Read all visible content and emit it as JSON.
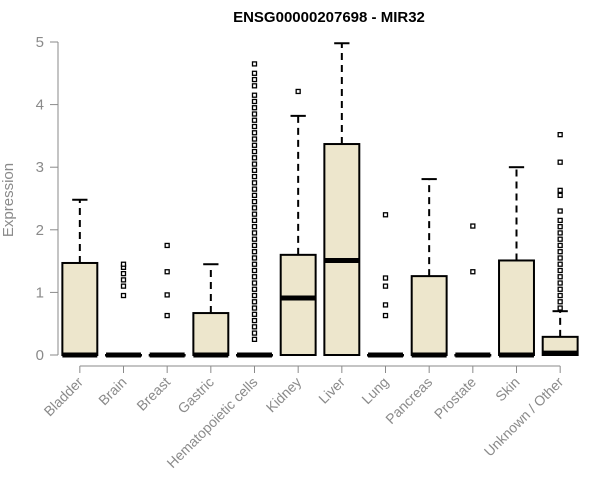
{
  "chart_data": {
    "type": "box",
    "title": "ENSG00000207698 - MIR32",
    "xlabel": "",
    "ylabel": "Expression",
    "ylim": [
      0,
      5
    ],
    "yticks": [
      "0",
      "1",
      "2",
      "3",
      "4",
      "5"
    ],
    "grid": false,
    "colors": {
      "box_fill": "#ede6cc",
      "stroke": "#000000",
      "tick_text": "#8a8a8a"
    },
    "categories": [
      "Bladder",
      "Brain",
      "Breast",
      "Gastric",
      "Hematopoietic cells",
      "Kidney",
      "Liver",
      "Lung",
      "Pancreas",
      "Prostate",
      "Skin",
      "Unknown / Other"
    ],
    "boxes": [
      {
        "q1": 0,
        "median": 0,
        "q3": 1.47,
        "whisker_low": 0,
        "whisker_high": 2.48,
        "outliers": []
      },
      {
        "q1": 0,
        "median": 0,
        "q3": 0,
        "whisker_low": 0,
        "whisker_high": 0,
        "outliers": [
          0.95,
          1.1,
          1.2,
          1.3,
          1.4,
          1.45
        ]
      },
      {
        "q1": 0,
        "median": 0,
        "q3": 0,
        "whisker_low": 0,
        "whisker_high": 0,
        "outliers": [
          0.63,
          0.96,
          1.33,
          1.75
        ]
      },
      {
        "q1": 0,
        "median": 0,
        "q3": 0.67,
        "whisker_low": 0,
        "whisker_high": 1.45,
        "outliers": []
      },
      {
        "q1": 0,
        "median": 0,
        "q3": 0,
        "whisker_low": 0,
        "whisker_high": 0,
        "outliers": [
          0.25,
          0.35,
          0.45,
          0.55,
          0.65,
          0.75,
          0.85,
          0.95,
          1.05,
          1.15,
          1.25,
          1.35,
          1.45,
          1.55,
          1.65,
          1.75,
          1.85,
          1.95,
          2.05,
          2.15,
          2.25,
          2.35,
          2.45,
          2.55,
          2.65,
          2.75,
          2.85,
          2.95,
          3.05,
          3.15,
          3.25,
          3.35,
          3.45,
          3.55,
          3.65,
          3.75,
          3.85,
          3.95,
          4.05,
          4.15,
          4.3,
          4.4,
          4.5,
          4.65
        ]
      },
      {
        "q1": 0,
        "median": 0.91,
        "q3": 1.6,
        "whisker_low": 0,
        "whisker_high": 3.82,
        "outliers": [
          4.21
        ]
      },
      {
        "q1": 0,
        "median": 1.51,
        "q3": 3.37,
        "whisker_low": 0,
        "whisker_high": 4.98,
        "outliers": []
      },
      {
        "q1": 0,
        "median": 0,
        "q3": 0,
        "whisker_low": 0,
        "whisker_high": 0,
        "outliers": [
          0.63,
          0.8,
          1.1,
          1.23,
          2.24
        ]
      },
      {
        "q1": 0,
        "median": 0,
        "q3": 1.26,
        "whisker_low": 0,
        "whisker_high": 2.81,
        "outliers": []
      },
      {
        "q1": 0,
        "median": 0,
        "q3": 0,
        "whisker_low": 0,
        "whisker_high": 0,
        "outliers": [
          1.33,
          2.06
        ]
      },
      {
        "q1": 0,
        "median": 0,
        "q3": 1.51,
        "whisker_low": 0,
        "whisker_high": 3.0,
        "outliers": []
      },
      {
        "q1": 0,
        "median": 0.03,
        "q3": 0.29,
        "whisker_low": 0,
        "whisker_high": 0.7,
        "outliers": [
          0.75,
          0.85,
          0.95,
          1.05,
          1.15,
          1.25,
          1.35,
          1.45,
          1.55,
          1.65,
          1.75,
          1.85,
          1.95,
          2.05,
          2.15,
          2.3,
          2.55,
          2.63,
          3.08,
          3.52
        ]
      }
    ]
  }
}
